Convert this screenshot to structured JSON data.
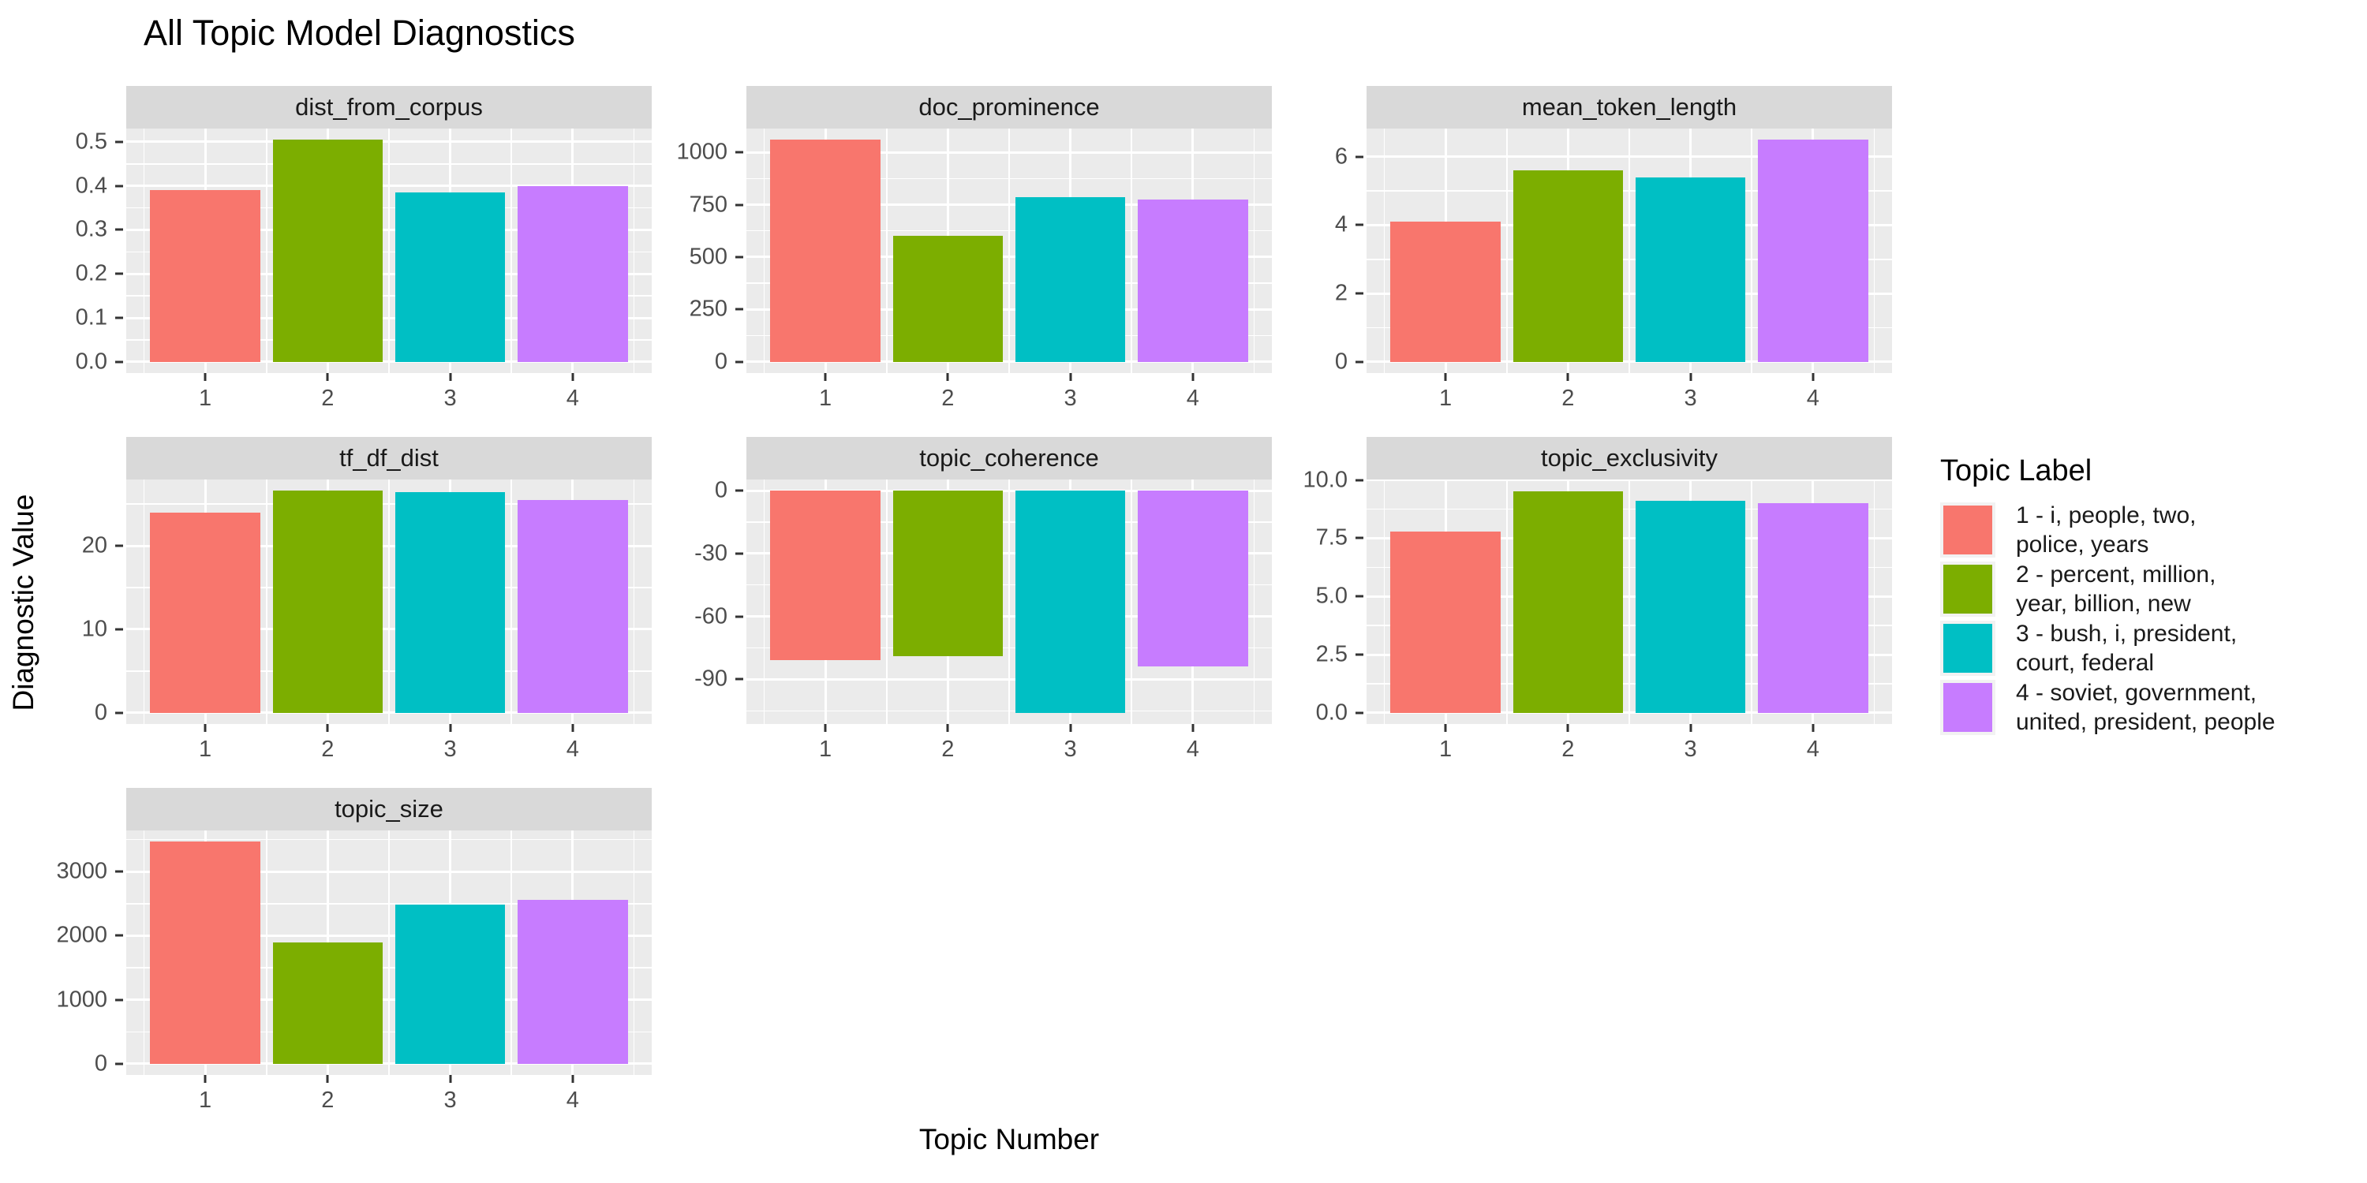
{
  "chart_data": {
    "type": "bar",
    "title": "All Topic Model Diagnostics",
    "xlabel": "Topic Number",
    "ylabel": "Diagnostic Value",
    "categories": [
      "1",
      "2",
      "3",
      "4"
    ],
    "bar_colors": [
      "#F8766D",
      "#7CAE00",
      "#00BFC4",
      "#C77CFF"
    ],
    "layout": "3-column facet wrap, 7 facets, legend right",
    "grid": "white major and minor gridlines on grey panel",
    "facets": [
      {
        "name": "dist_from_corpus",
        "values": [
          0.39,
          0.505,
          0.385,
          0.4
        ],
        "yticks": [
          0.0,
          0.1,
          0.2,
          0.3,
          0.4,
          0.5
        ],
        "ytick_labels": [
          "0.0",
          "0.1",
          "0.2",
          "0.3",
          "0.4",
          "0.5"
        ],
        "ylim": [
          -0.0253,
          0.5303
        ]
      },
      {
        "name": "doc_prominence",
        "values": [
          1060,
          600,
          785,
          775
        ],
        "yticks": [
          0,
          250,
          500,
          750,
          1000
        ],
        "ytick_labels": [
          "0",
          "250",
          "500",
          "750",
          "1000"
        ],
        "ylim": [
          -53,
          1113
        ]
      },
      {
        "name": "mean_token_length",
        "values": [
          4.1,
          5.6,
          5.4,
          6.5
        ],
        "yticks": [
          0,
          2,
          4,
          6
        ],
        "ytick_labels": [
          "0",
          "2",
          "4",
          "6"
        ],
        "ylim": [
          -0.325,
          6.825
        ]
      },
      {
        "name": "tf_df_dist",
        "values": [
          24,
          26.6,
          26.4,
          25.5
        ],
        "yticks": [
          0,
          10,
          20
        ],
        "ytick_labels": [
          "0",
          "10",
          "20"
        ],
        "ylim": [
          -1.33,
          27.93
        ]
      },
      {
        "name": "topic_coherence",
        "values": [
          -81,
          -79,
          -106,
          -84
        ],
        "yticks": [
          0,
          -30,
          -60,
          -90
        ],
        "ytick_labels": [
          "0",
          "-30",
          "-60",
          "-90"
        ],
        "ylim": [
          -111.3,
          5.3
        ]
      },
      {
        "name": "topic_exclusivity",
        "values": [
          7.8,
          9.5,
          9.1,
          9.0
        ],
        "yticks": [
          0.0,
          2.5,
          5.0,
          7.5,
          10.0
        ],
        "ytick_labels": [
          "0.0",
          "2.5",
          "5.0",
          "7.5",
          "10.0"
        ],
        "ylim": [
          -0.48,
          10.02
        ]
      },
      {
        "name": "topic_size",
        "values": [
          3470,
          1900,
          2490,
          2560
        ],
        "yticks": [
          0,
          1000,
          2000,
          3000
        ],
        "ytick_labels": [
          "0",
          "1000",
          "2000",
          "3000"
        ],
        "ylim": [
          -173.5,
          3643.5
        ]
      }
    ],
    "legend": {
      "title": "Topic Label",
      "position": "right",
      "entries": [
        {
          "label": "1 - i, people, two,\npolice, years",
          "color": "#F8766D"
        },
        {
          "label": "2 - percent, million,\nyear, billion, new",
          "color": "#7CAE00"
        },
        {
          "label": "3 - bush, i, president,\ncourt, federal",
          "color": "#00BFC4"
        },
        {
          "label": "4 - soviet, government,\nunited, president, people",
          "color": "#C77CFF"
        }
      ]
    },
    "theme": {
      "panel_bg": "#EBEBEB",
      "strip_bg": "#D9D9D9",
      "gridline": "#FFFFFF",
      "axis_text": "#4D4D4D",
      "tick_mark": "#333333"
    }
  }
}
